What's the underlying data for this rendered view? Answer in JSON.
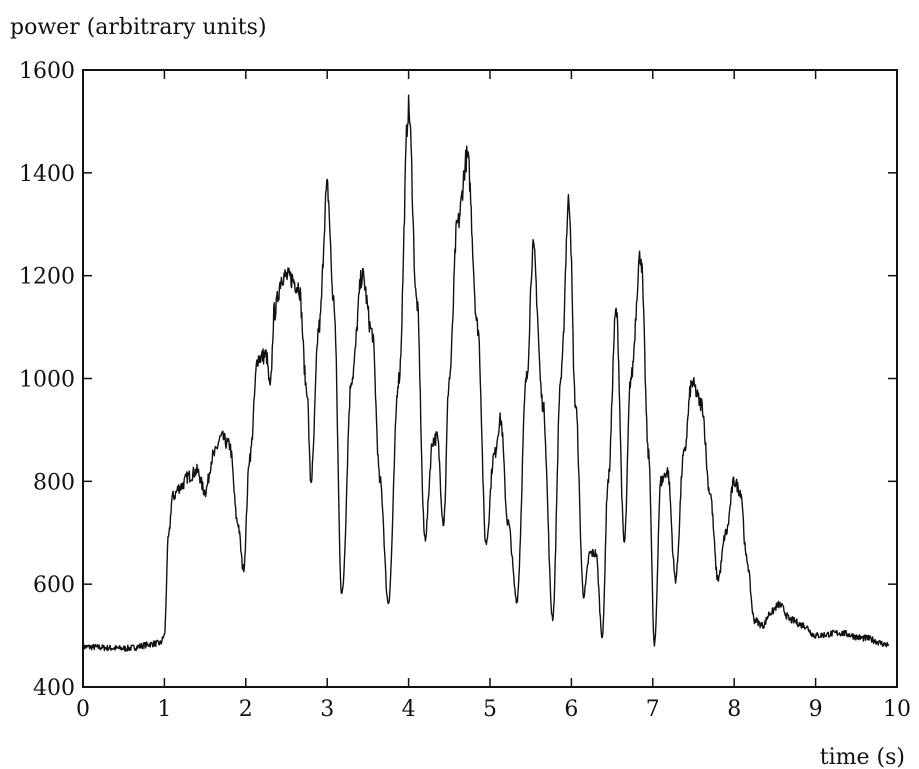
{
  "chart_data": {
    "type": "line",
    "title": "",
    "xlabel": "time (s)",
    "ylabel": "power (arbitrary units)",
    "xlim": [
      0,
      10
    ],
    "ylim": [
      400,
      1600
    ],
    "xticks": [
      0,
      1,
      2,
      3,
      4,
      5,
      6,
      7,
      8,
      9,
      10
    ],
    "yticks": [
      400,
      600,
      800,
      1000,
      1200,
      1400,
      1600
    ],
    "grid": false,
    "legend": "none",
    "line_color": "#111111",
    "series": [
      {
        "x": [
          0,
          0.5,
          0.95,
          1.0,
          1.05,
          1.1,
          1.2,
          1.3,
          1.4,
          1.5,
          1.6,
          1.7,
          1.8,
          1.9,
          1.97,
          2.05,
          2.15,
          2.25,
          2.3,
          2.35,
          2.45,
          2.55,
          2.65,
          2.75,
          2.8,
          2.9,
          3.0,
          3.08,
          3.18,
          3.3,
          3.43,
          3.55,
          3.65,
          3.75,
          3.88,
          4.0,
          4.1,
          4.2,
          4.3,
          4.35,
          4.43,
          4.5,
          4.6,
          4.72,
          4.85,
          4.95,
          5.05,
          5.13,
          5.22,
          5.33,
          5.45,
          5.53,
          5.65,
          5.77,
          5.87,
          5.97,
          6.05,
          6.15,
          6.23,
          6.3,
          6.38,
          6.45,
          6.55,
          6.65,
          6.73,
          6.85,
          6.95,
          7.02,
          7.1,
          7.18,
          7.28,
          7.38,
          7.48,
          7.6,
          7.7,
          7.8,
          7.9,
          8.0,
          8.08,
          8.15,
          8.25,
          8.35,
          8.45,
          8.55,
          8.7,
          8.85,
          9.0,
          9.3,
          9.6,
          9.9
        ],
        "values": [
          478,
          475,
          485,
          500,
          690,
          770,
          790,
          810,
          820,
          780,
          850,
          885,
          870,
          720,
          630,
          850,
          1040,
          1045,
          980,
          1130,
          1200,
          1195,
          1180,
          980,
          800,
          1100,
          1370,
          1150,
          580,
          1000,
          1200,
          1090,
          800,
          565,
          1000,
          1525,
          1150,
          690,
          880,
          885,
          720,
          1000,
          1300,
          1430,
          1100,
          680,
          850,
          920,
          720,
          570,
          1000,
          1250,
          950,
          535,
          1000,
          1345,
          950,
          580,
          660,
          660,
          500,
          800,
          1130,
          680,
          1000,
          1240,
          850,
          480,
          800,
          820,
          610,
          850,
          990,
          950,
          780,
          610,
          700,
          800,
          780,
          650,
          530,
          520,
          545,
          560,
          530,
          520,
          500,
          505,
          495,
          482
        ]
      }
    ]
  }
}
